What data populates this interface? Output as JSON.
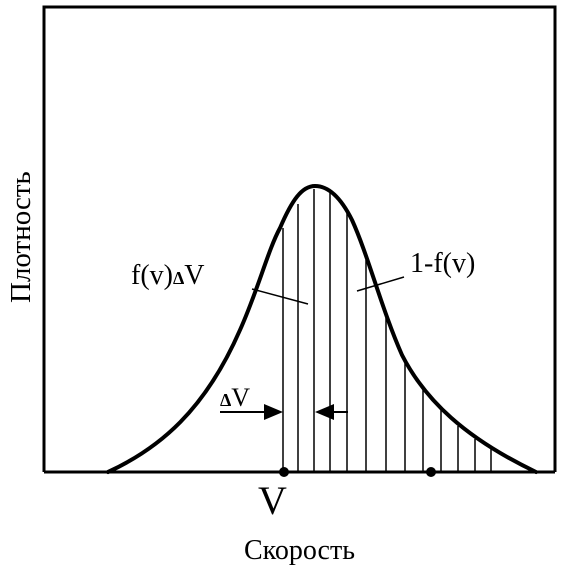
{
  "diagram": {
    "y_axis_label": "Плотность",
    "x_axis_label": "Скорость",
    "v_marker_label": "V",
    "delta_v_label": "V",
    "delta_symbol": "Δ",
    "strip_label_prefix": "f(v)",
    "strip_label_delta": "Δ",
    "strip_label_suffix": "V",
    "tail_label": "1-f(v)",
    "colors": {
      "stroke": "#000000",
      "background": "#ffffff"
    }
  }
}
